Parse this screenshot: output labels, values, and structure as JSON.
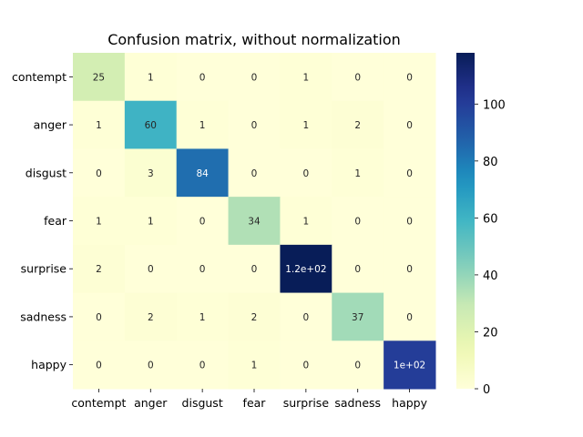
{
  "chart_data": {
    "type": "heatmap",
    "title": "Confusion matrix, without normalization",
    "row_labels": [
      "contempt",
      "anger",
      "disgust",
      "fear",
      "surprise",
      "sadness",
      "happy"
    ],
    "col_labels": [
      "contempt",
      "anger",
      "disgust",
      "fear",
      "surprise",
      "sadness",
      "happy"
    ],
    "values": [
      [
        25,
        1,
        0,
        0,
        1,
        0,
        0
      ],
      [
        1,
        60,
        1,
        0,
        1,
        2,
        0
      ],
      [
        0,
        3,
        84,
        0,
        0,
        1,
        0
      ],
      [
        1,
        1,
        0,
        34,
        1,
        0,
        0
      ],
      [
        2,
        0,
        0,
        0,
        118,
        0,
        0
      ],
      [
        0,
        2,
        1,
        2,
        0,
        37,
        0
      ],
      [
        0,
        0,
        0,
        1,
        0,
        0,
        100
      ]
    ],
    "cell_labels": [
      [
        "25",
        "1",
        "0",
        "0",
        "1",
        "0",
        "0"
      ],
      [
        "1",
        "60",
        "1",
        "0",
        "1",
        "2",
        "0"
      ],
      [
        "0",
        "3",
        "84",
        "0",
        "0",
        "1",
        "0"
      ],
      [
        "1",
        "1",
        "0",
        "34",
        "1",
        "0",
        "0"
      ],
      [
        "2",
        "0",
        "0",
        "0",
        "1.2e+02",
        "0",
        "0"
      ],
      [
        "0",
        "2",
        "1",
        "2",
        "0",
        "37",
        "0"
      ],
      [
        "0",
        "0",
        "0",
        "1",
        "0",
        "0",
        "1e+02"
      ]
    ],
    "colormap": "YlGnBu",
    "vmin": 0,
    "vmax": 118,
    "colorbar_ticks": [
      0,
      20,
      40,
      60,
      80,
      100
    ],
    "colorbar_tick_labels": [
      "0",
      "20",
      "40",
      "60",
      "80",
      "100"
    ]
  }
}
